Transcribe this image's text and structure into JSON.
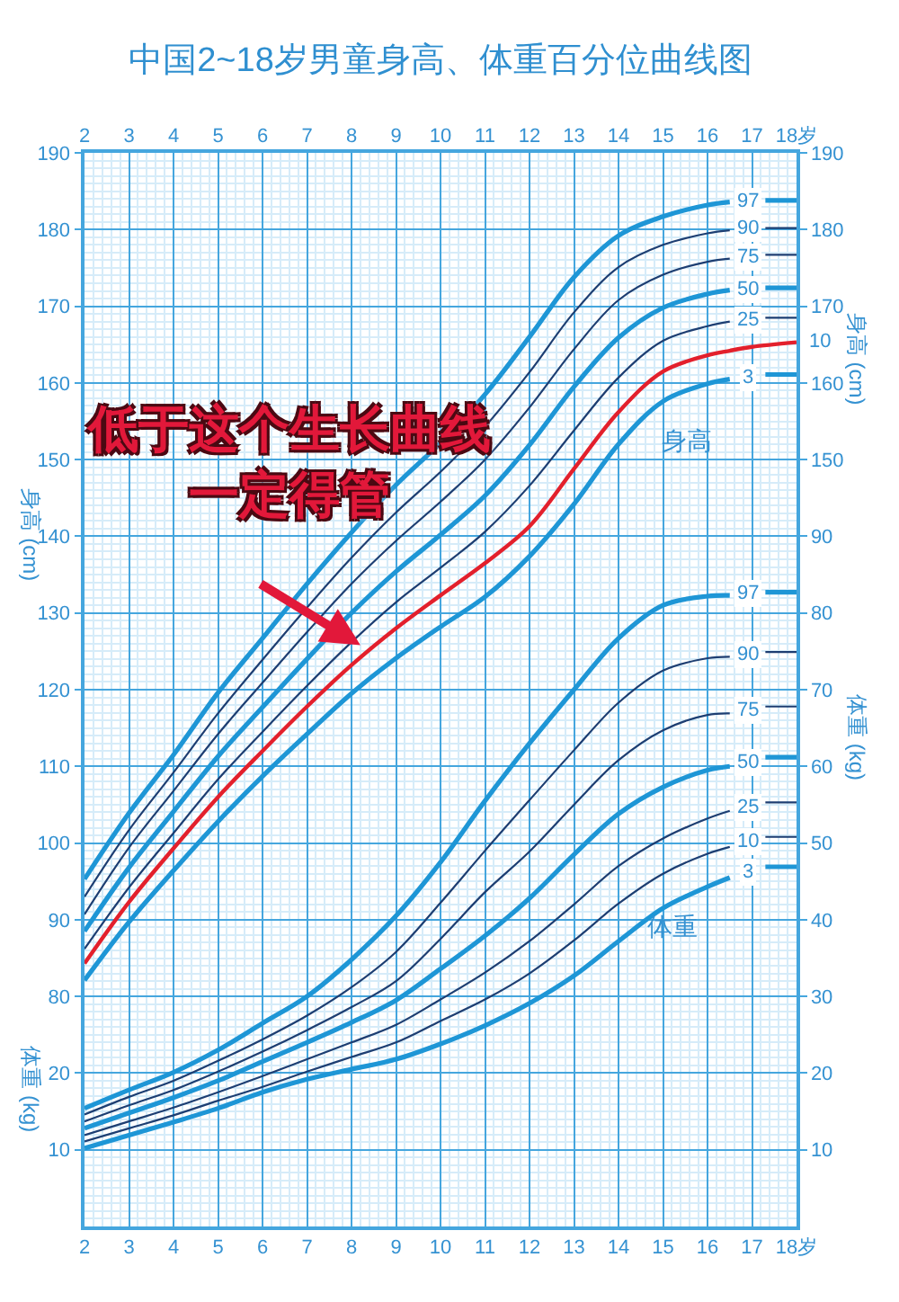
{
  "chart_data": [
    {
      "type": "line",
      "title": "中国2~18岁男童身高、体重百分位曲线图",
      "y2label": "身高 (cm)",
      "ylabel": "身高 (cm)",
      "annotations": [
        {
          "text": "低于这个生长曲线一定得管",
          "x": 8.2,
          "y": 125.8
        },
        "身高"
      ],
      "x": [
        2,
        3,
        4,
        5,
        6,
        7,
        8,
        9,
        10,
        11,
        12,
        13,
        14,
        15,
        16,
        16.5,
        17,
        17.3,
        18
      ],
      "xlim": [
        2,
        18
      ],
      "xticks": [
        2,
        3,
        4,
        5,
        6,
        7,
        8,
        9,
        10,
        11,
        12,
        13,
        14,
        15,
        16,
        17,
        {
          "value": 18,
          "label": "18岁"
        }
      ],
      "ylim": [
        50,
        190
      ],
      "yticks": [
        80,
        90,
        100,
        110,
        120,
        130,
        140,
        150,
        160,
        170,
        180,
        190
      ],
      "y2lim": [
        50,
        190
      ],
      "y2ticks": [
        150,
        160,
        170,
        180,
        190
      ],
      "grid": true,
      "line_style": "solid",
      "series": [
        {
          "name": "97",
          "color": "#1e96d6",
          "values": [
            95.3,
            103.9,
            111.5,
            119.6,
            126.7,
            133.8,
            140.5,
            146.7,
            152.2,
            158.5,
            166.0,
            173.8,
            179.2,
            181.7,
            183.2,
            183.6,
            null,
            183.8,
            183.8
          ]
        },
        {
          "name": "90",
          "color": "#1d3e72",
          "values": [
            93.0,
            101.7,
            109.2,
            116.9,
            123.9,
            130.7,
            137.2,
            143.1,
            148.4,
            154.3,
            161.4,
            169.2,
            175.1,
            178.0,
            179.5,
            179.9,
            null,
            180.2,
            180.2
          ]
        },
        {
          "name": "75",
          "color": "#1d3e72",
          "values": [
            90.7,
            99.4,
            106.8,
            114.2,
            120.9,
            127.5,
            133.8,
            139.4,
            144.5,
            150.0,
            156.8,
            164.4,
            170.8,
            174.1,
            175.8,
            176.2,
            null,
            176.7,
            176.7
          ]
        },
        {
          "name": "50",
          "color": "#1e96d6",
          "values": [
            88.5,
            96.8,
            104.1,
            111.3,
            117.7,
            124.0,
            130.0,
            135.4,
            140.2,
            145.3,
            151.9,
            159.5,
            165.9,
            169.8,
            171.6,
            172.1,
            null,
            172.4,
            172.4
          ]
        },
        {
          "name": "25",
          "color": "#1d3e72",
          "values": [
            86.2,
            94.2,
            101.3,
            108.3,
            114.5,
            120.5,
            126.2,
            131.4,
            135.9,
            140.6,
            146.6,
            153.8,
            160.7,
            165.5,
            167.4,
            168.0,
            null,
            168.5,
            168.5
          ]
        },
        {
          "name": "10",
          "color": "#e3202c",
          "x": [
            2,
            3,
            4,
            5,
            6,
            7,
            8,
            9,
            10,
            11,
            12,
            13,
            14,
            15,
            16,
            16.5,
            17,
            18
          ],
          "values": [
            84.3,
            92.3,
            99.3,
            106.0,
            112.0,
            117.8,
            123.2,
            128.0,
            132.3,
            136.5,
            141.3,
            148.8,
            156.2,
            161.5,
            163.6,
            164.2,
            164.7,
            165.3
          ]
        },
        {
          "name": "3",
          "color": "#1e96d6",
          "values": [
            82.1,
            89.7,
            96.4,
            102.8,
            108.7,
            114.2,
            119.5,
            124.1,
            128.2,
            132.1,
            137.4,
            144.2,
            152.0,
            157.6,
            159.9,
            160.5,
            null,
            161.1,
            161.1
          ]
        }
      ]
    },
    {
      "type": "line",
      "y2label": "体重 (kg)",
      "ylabel": "体重 (kg)",
      "annotations": [
        "体重"
      ],
      "x": [
        2,
        3,
        4,
        5,
        6,
        7,
        8,
        9,
        10,
        11,
        12,
        13,
        14,
        15,
        16,
        16.5,
        17,
        17.3,
        18
      ],
      "xlim": [
        2,
        18
      ],
      "xticks": [
        2,
        3,
        4,
        5,
        6,
        7,
        8,
        9,
        10,
        11,
        12,
        13,
        14,
        15,
        16,
        17,
        {
          "value": 18,
          "label": "18岁"
        }
      ],
      "ylim": [
        0,
        140
      ],
      "yticks": [
        10,
        20
      ],
      "y2lim": [
        0,
        140
      ],
      "y2ticks": [
        10,
        20,
        30,
        40,
        50,
        60,
        70,
        80,
        90
      ],
      "grid": true,
      "line_style": "solid",
      "series": [
        {
          "name": "97",
          "color": "#1e96d6",
          "values": [
            15.4,
            17.8,
            20.1,
            23.0,
            26.5,
            30.0,
            34.8,
            40.5,
            47.5,
            55.5,
            63.0,
            70.0,
            76.7,
            81.0,
            82.2,
            82.3,
            null,
            82.7,
            82.7
          ]
        },
        {
          "name": "90",
          "color": "#1d3e72",
          "values": [
            14.6,
            16.9,
            19.0,
            21.6,
            24.4,
            27.5,
            31.2,
            35.8,
            42.2,
            49.0,
            55.6,
            62.1,
            68.3,
            72.5,
            74.1,
            74.3,
            null,
            74.9,
            74.9
          ]
        },
        {
          "name": "75",
          "color": "#1d3e72",
          "values": [
            13.7,
            15.8,
            17.8,
            20.2,
            22.8,
            25.6,
            28.6,
            32.0,
            37.5,
            43.6,
            48.9,
            55.0,
            60.8,
            64.7,
            66.7,
            66.9,
            null,
            67.8,
            67.8
          ]
        },
        {
          "name": "50",
          "color": "#1e96d6",
          "values": [
            12.8,
            14.8,
            16.8,
            19.0,
            21.5,
            24.0,
            26.6,
            29.5,
            33.6,
            37.9,
            42.8,
            48.5,
            53.8,
            57.3,
            59.5,
            60.0,
            null,
            61.2,
            61.2
          ]
        },
        {
          "name": "25",
          "color": "#1d3e72",
          "values": [
            11.9,
            13.7,
            15.5,
            17.5,
            19.6,
            21.8,
            24.0,
            26.3,
            29.6,
            33.1,
            37.2,
            42.0,
            47.0,
            50.6,
            53.2,
            54.2,
            null,
            55.3,
            55.3
          ]
        },
        {
          "name": "10",
          "color": "#1d3e72",
          "values": [
            11.1,
            12.8,
            14.5,
            16.4,
            18.2,
            20.2,
            22.1,
            24.0,
            26.8,
            29.6,
            33.0,
            37.3,
            42.1,
            46.0,
            48.6,
            49.5,
            null,
            50.8,
            50.8
          ]
        },
        {
          "name": "3",
          "color": "#1e96d6",
          "values": [
            10.2,
            11.9,
            13.6,
            15.4,
            17.5,
            19.2,
            20.5,
            21.8,
            23.8,
            26.2,
            29.1,
            32.7,
            37.2,
            41.5,
            44.3,
            45.5,
            null,
            46.9,
            46.9
          ]
        }
      ]
    }
  ]
}
